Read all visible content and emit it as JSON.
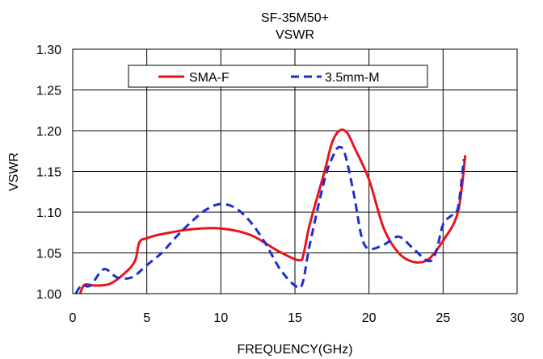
{
  "chart_data": {
    "type": "line",
    "title": "SF-35M50+",
    "subtitle": "VSWR",
    "xlabel": "FREQUENCY(GHz)",
    "ylabel": "VSWR",
    "xlim": [
      0,
      30
    ],
    "ylim": [
      1.0,
      1.3
    ],
    "x_ticks": [
      "0",
      "5",
      "10",
      "15",
      "20",
      "25",
      "30"
    ],
    "y_ticks": [
      "1.00",
      "1.05",
      "1.10",
      "1.15",
      "1.20",
      "1.25",
      "1.30"
    ],
    "grid": true,
    "legend_position": "top-center",
    "series": [
      {
        "name": "SMA-F",
        "color": "#e8141c",
        "style": "solid",
        "x": [
          0.5,
          0.8,
          1.5,
          2.5,
          3.5,
          4.2,
          4.5,
          5,
          6,
          8,
          10,
          12,
          14,
          15.3,
          15.6,
          16,
          17,
          17.5,
          18,
          18.5,
          19,
          20,
          21,
          22,
          23,
          24,
          25,
          26,
          26.5
        ],
        "y": [
          1.0,
          1.011,
          1.01,
          1.012,
          1.025,
          1.04,
          1.063,
          1.068,
          1.073,
          1.079,
          1.08,
          1.072,
          1.051,
          1.041,
          1.05,
          1.085,
          1.15,
          1.185,
          1.2,
          1.198,
          1.18,
          1.14,
          1.08,
          1.05,
          1.039,
          1.042,
          1.065,
          1.1,
          1.17
        ]
      },
      {
        "name": "3.5mm-M",
        "color": "#1a2fd0",
        "style": "dashed",
        "x": [
          0.2,
          0.6,
          1.2,
          2.1,
          3,
          4,
          5,
          6,
          7,
          8,
          9,
          10,
          11,
          12,
          13,
          14,
          15,
          15.5,
          16,
          17,
          17.6,
          18,
          18.4,
          19,
          19.5,
          20,
          21,
          22,
          23,
          24,
          24.5,
          25,
          25.5,
          26,
          26.4
        ],
        "y": [
          1.0,
          1.01,
          1.01,
          1.03,
          1.02,
          1.02,
          1.035,
          1.05,
          1.07,
          1.088,
          1.103,
          1.11,
          1.105,
          1.088,
          1.062,
          1.03,
          1.01,
          1.012,
          1.06,
          1.14,
          1.17,
          1.18,
          1.17,
          1.12,
          1.07,
          1.055,
          1.06,
          1.07,
          1.055,
          1.04,
          1.05,
          1.085,
          1.095,
          1.105,
          1.165
        ]
      }
    ]
  }
}
